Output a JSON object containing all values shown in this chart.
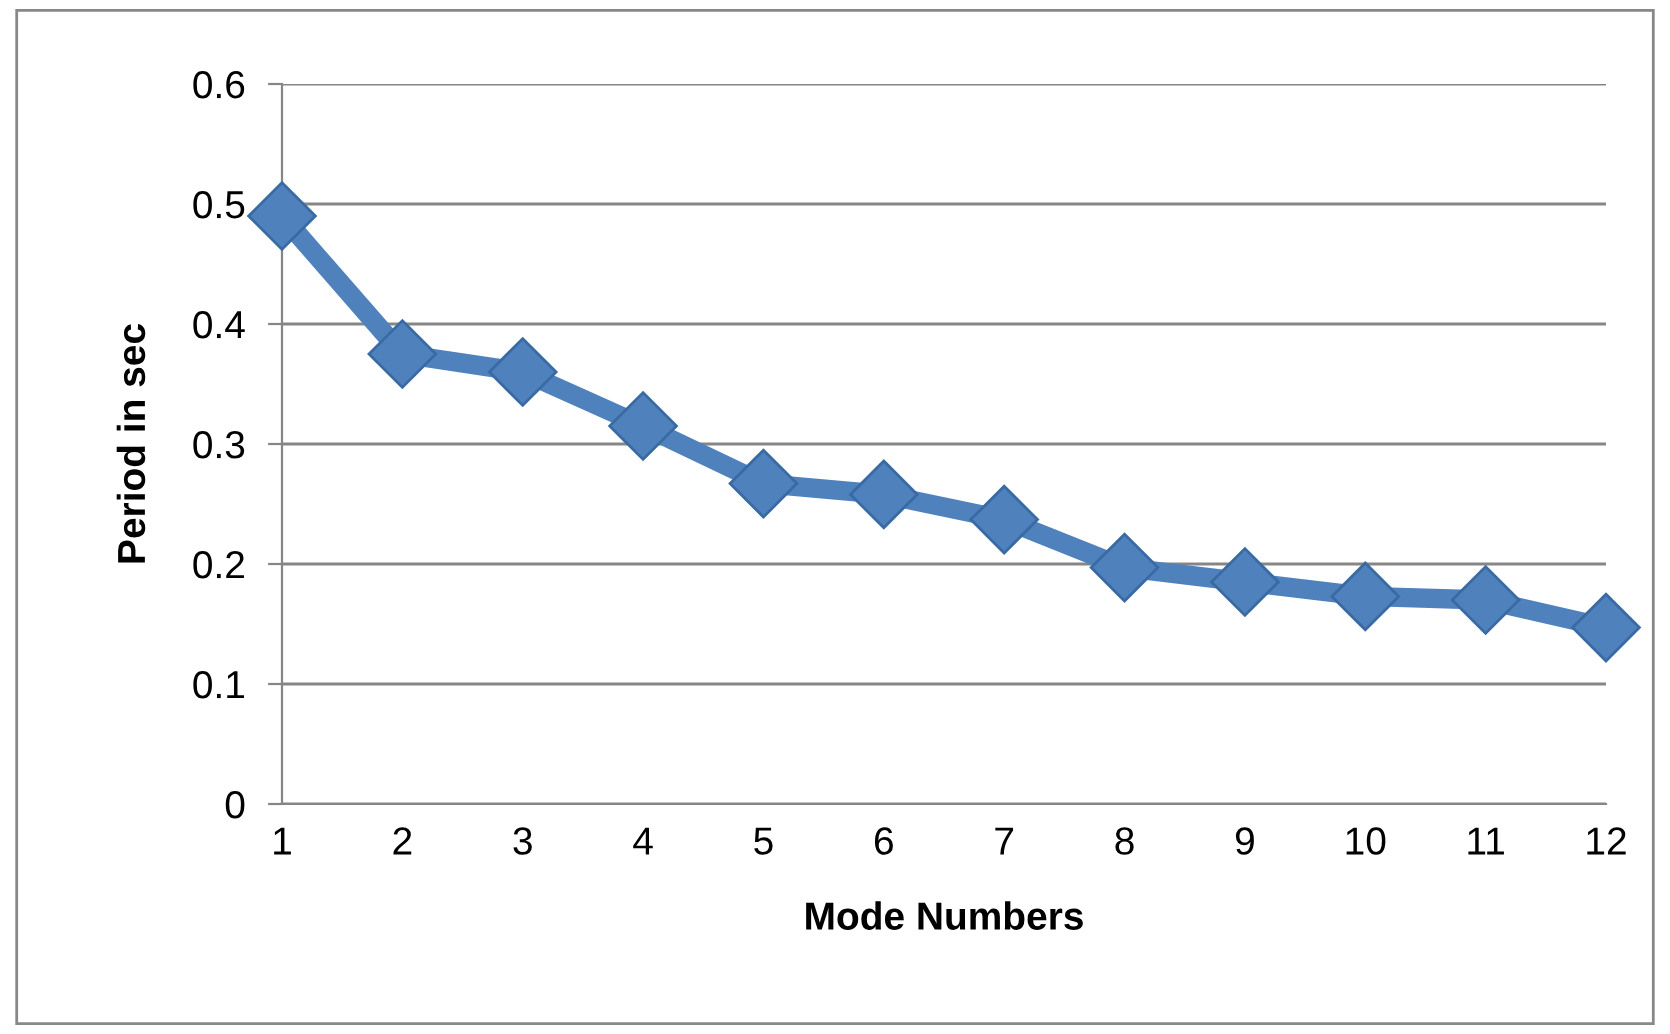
{
  "chart_data": {
    "type": "line",
    "xlabel": "Mode Numbers",
    "ylabel": "Period in sec",
    "categories": [
      "1",
      "2",
      "3",
      "4",
      "5",
      "6",
      "7",
      "8",
      "9",
      "10",
      "11",
      "12"
    ],
    "series": [
      {
        "color": "#4f81bd",
        "values": [
          0.49,
          0.375,
          0.36,
          0.315,
          0.267,
          0.258,
          0.237,
          0.197,
          0.185,
          0.173,
          0.17,
          0.147
        ]
      }
    ],
    "ylim": [
      0,
      0.6
    ],
    "yticks": [
      {
        "value": 0,
        "label": "0"
      },
      0.1,
      0.2,
      0.3,
      0.4,
      0.5,
      0.6
    ],
    "grid": "y",
    "marker": "diamond",
    "line_style": "solid",
    "legend": false
  }
}
